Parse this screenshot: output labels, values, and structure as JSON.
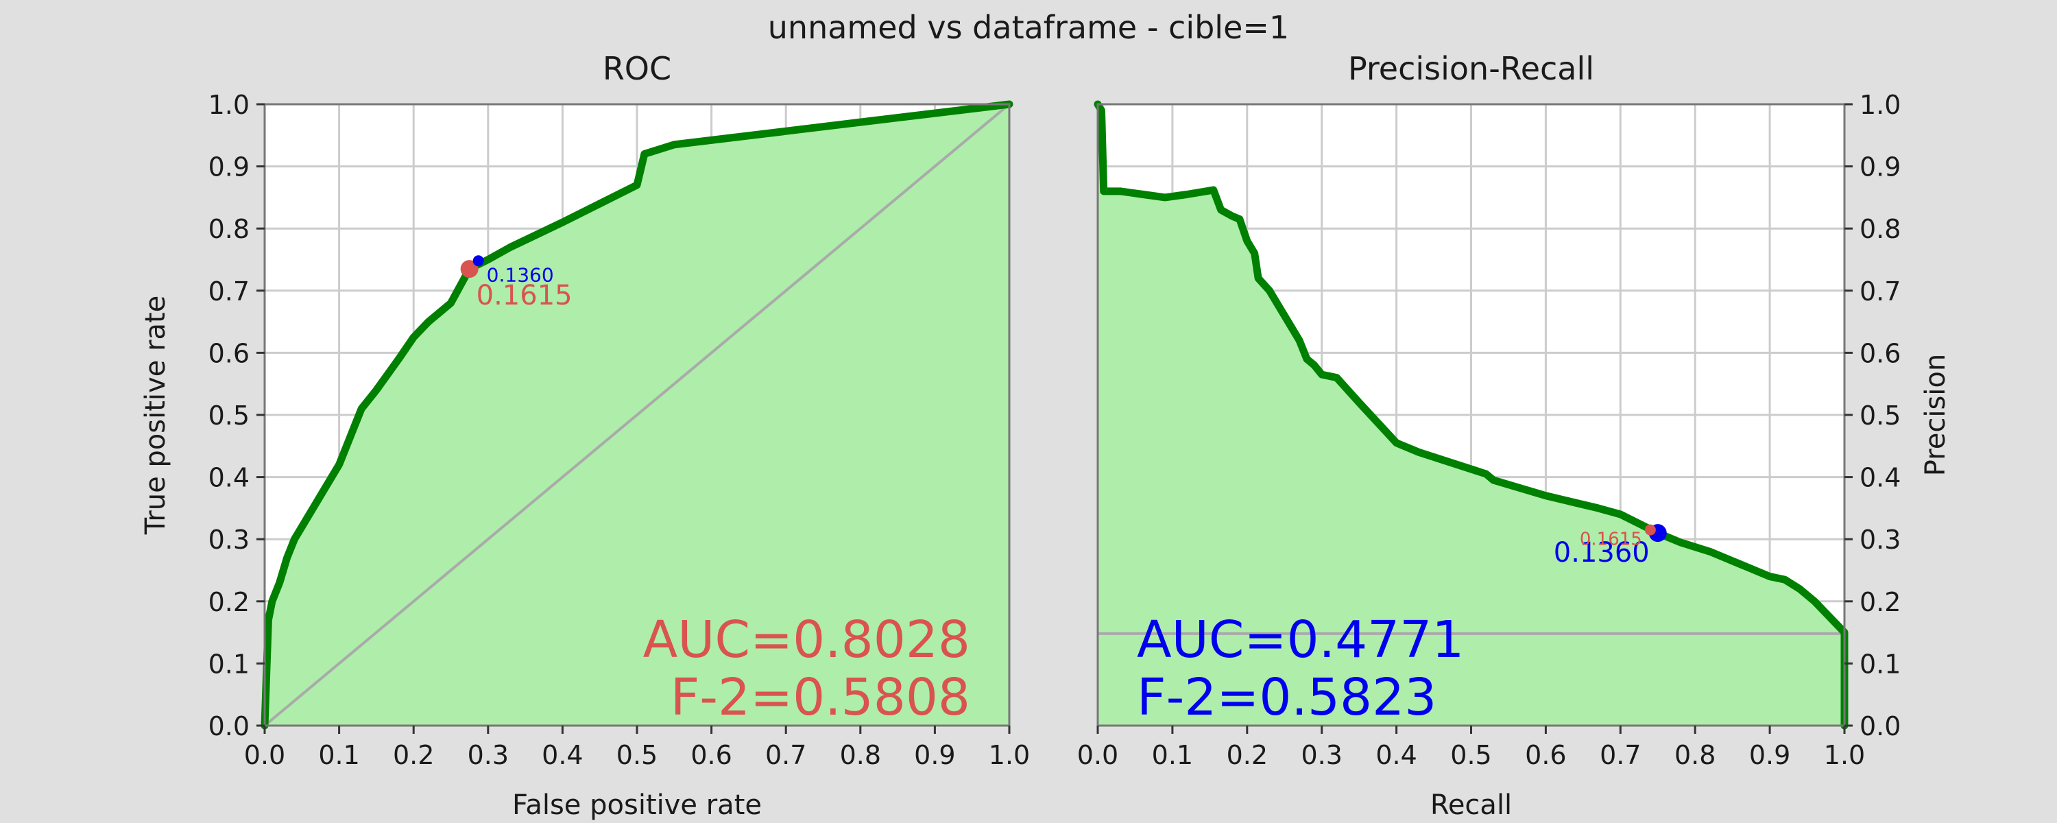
{
  "figure": {
    "suptitle": "unnamed vs dataframe - cible=1",
    "background": "#e0e0e0"
  },
  "chart_data": [
    {
      "type": "area",
      "title": "ROC",
      "xlabel": "False positive rate",
      "ylabel": "True positive rate",
      "xlim": [
        0,
        1
      ],
      "ylim": [
        0,
        1
      ],
      "ticks": [
        "0.0",
        "0.1",
        "0.2",
        "0.3",
        "0.4",
        "0.5",
        "0.6",
        "0.7",
        "0.8",
        "0.9",
        "1.0"
      ],
      "grid": true,
      "curve": {
        "color": "#008000",
        "fill": "#aeedaa",
        "points": [
          [
            0.0,
            0.0
          ],
          [
            0.005,
            0.17
          ],
          [
            0.01,
            0.2
          ],
          [
            0.02,
            0.23
          ],
          [
            0.03,
            0.27
          ],
          [
            0.04,
            0.3
          ],
          [
            0.06,
            0.34
          ],
          [
            0.08,
            0.38
          ],
          [
            0.1,
            0.42
          ],
          [
            0.13,
            0.51
          ],
          [
            0.15,
            0.54
          ],
          [
            0.18,
            0.59
          ],
          [
            0.2,
            0.625
          ],
          [
            0.22,
            0.65
          ],
          [
            0.25,
            0.68
          ],
          [
            0.275,
            0.735
          ],
          [
            0.3,
            0.75
          ],
          [
            0.33,
            0.77
          ],
          [
            0.4,
            0.81
          ],
          [
            0.5,
            0.87
          ],
          [
            0.51,
            0.92
          ],
          [
            0.55,
            0.935
          ],
          [
            1.0,
            1.0
          ]
        ]
      },
      "diagonal": {
        "from": [
          0,
          0
        ],
        "to": [
          1,
          1
        ],
        "color": "#aaaaaa"
      },
      "markers": [
        {
          "x": 0.275,
          "y": 0.735,
          "color": "#d9534f",
          "label": "0.1615",
          "size": "large"
        },
        {
          "x": 0.287,
          "y": 0.748,
          "color": "#0000ee",
          "label": "0.1360",
          "size": "small"
        }
      ],
      "annotation": {
        "lines": [
          "AUC=0.8028",
          "F-2=0.5808"
        ],
        "color": "#d9534f",
        "align": "right"
      }
    },
    {
      "type": "area",
      "title": "Precision-Recall",
      "xlabel": "Recall",
      "ylabel": "Precision",
      "xlim": [
        0,
        1
      ],
      "ylim": [
        0,
        1
      ],
      "ticks": [
        "0.0",
        "0.1",
        "0.2",
        "0.3",
        "0.4",
        "0.5",
        "0.6",
        "0.7",
        "0.8",
        "0.9",
        "1.0"
      ],
      "grid": true,
      "curve": {
        "color": "#008000",
        "fill": "#aeedaa",
        "points": [
          [
            0.0,
            1.0
          ],
          [
            0.005,
            0.99
          ],
          [
            0.008,
            0.86
          ],
          [
            0.03,
            0.86
          ],
          [
            0.06,
            0.855
          ],
          [
            0.09,
            0.85
          ],
          [
            0.12,
            0.855
          ],
          [
            0.155,
            0.862
          ],
          [
            0.165,
            0.83
          ],
          [
            0.18,
            0.82
          ],
          [
            0.19,
            0.815
          ],
          [
            0.2,
            0.78
          ],
          [
            0.21,
            0.76
          ],
          [
            0.215,
            0.72
          ],
          [
            0.23,
            0.7
          ],
          [
            0.25,
            0.66
          ],
          [
            0.27,
            0.62
          ],
          [
            0.28,
            0.59
          ],
          [
            0.29,
            0.58
          ],
          [
            0.3,
            0.565
          ],
          [
            0.32,
            0.56
          ],
          [
            0.35,
            0.52
          ],
          [
            0.4,
            0.455
          ],
          [
            0.43,
            0.44
          ],
          [
            0.52,
            0.405
          ],
          [
            0.53,
            0.395
          ],
          [
            0.6,
            0.37
          ],
          [
            0.67,
            0.35
          ],
          [
            0.7,
            0.34
          ],
          [
            0.75,
            0.31
          ],
          [
            0.78,
            0.295
          ],
          [
            0.82,
            0.28
          ],
          [
            0.85,
            0.265
          ],
          [
            0.9,
            0.24
          ],
          [
            0.92,
            0.235
          ],
          [
            0.94,
            0.22
          ],
          [
            0.96,
            0.2
          ],
          [
            1.0,
            0.15
          ],
          [
            1.0,
            0.0
          ]
        ]
      },
      "baseline": {
        "y": 0.148,
        "x_from": 0.0,
        "x_to": 1.0,
        "color": "#aaaaaa"
      },
      "markers": [
        {
          "x": 0.75,
          "y": 0.31,
          "color": "#0000ee",
          "label": "0.1360",
          "size": "large"
        },
        {
          "x": 0.74,
          "y": 0.315,
          "color": "#d9534f",
          "label": "0.1615",
          "size": "small"
        }
      ],
      "annotation": {
        "lines": [
          "AUC=0.4771",
          "F-2=0.5823"
        ],
        "color": "#0000ee",
        "align": "left"
      }
    }
  ]
}
